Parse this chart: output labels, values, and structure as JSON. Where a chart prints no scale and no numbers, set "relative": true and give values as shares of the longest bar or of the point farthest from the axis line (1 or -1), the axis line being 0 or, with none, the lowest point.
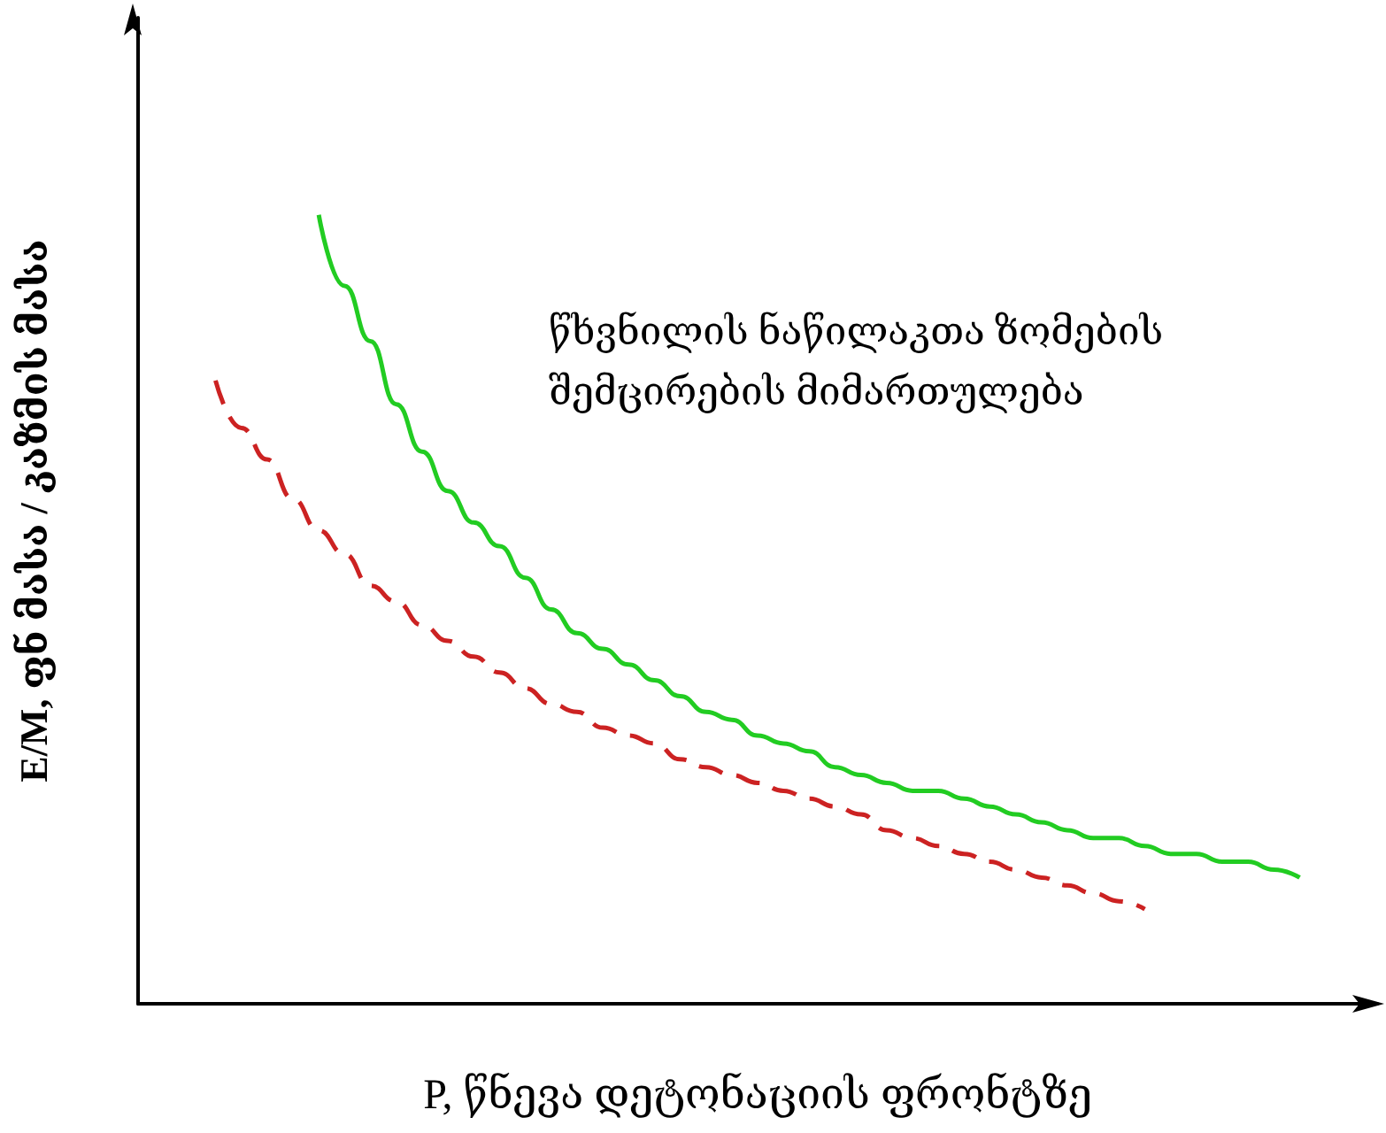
{
  "chart_data": {
    "type": "line",
    "relative": true,
    "xlabel": "P, წნევა დეტონაციის ფრონტზე",
    "ylabel": "E/M, ფნ მასა / კაზმის მასა",
    "annotations": [
      "წხვნილის ნაწილაკთა ზომების\nშემცირების მიმართულება"
    ],
    "categories": [
      null,
      null,
      null,
      null,
      null,
      null,
      null,
      null,
      null,
      null,
      null,
      null,
      null,
      null,
      null,
      null,
      null,
      null,
      null,
      null,
      null,
      null,
      null,
      null,
      null,
      null,
      null,
      null,
      null,
      null,
      null,
      null,
      null,
      null,
      null,
      null,
      null,
      null,
      null,
      null,
      null,
      null,
      null,
      null,
      null,
      null,
      null,
      null,
      null
    ],
    "series": [
      {
        "color": "#22cc22",
        "line_style": "solid",
        "values": [
          null,
          null,
          null,
          null,
          null,
          null,
          null,
          1.0,
          0.91,
          0.84,
          0.76,
          0.7,
          0.65,
          0.61,
          0.58,
          0.54,
          0.5,
          0.47,
          0.45,
          0.43,
          0.41,
          0.39,
          0.37,
          0.36,
          0.34,
          0.33,
          0.32,
          0.3,
          0.29,
          0.28,
          0.27,
          0.27,
          0.26,
          0.25,
          0.24,
          0.23,
          0.22,
          0.21,
          0.21,
          0.2,
          0.19,
          0.19,
          0.18,
          0.18,
          0.17,
          0.16,
          null,
          null,
          null
        ]
      },
      {
        "color": "#cc2222",
        "line_style": "dashed",
        "values": [
          null,
          null,
          null,
          0.79,
          0.73,
          0.69,
          0.64,
          0.6,
          0.57,
          0.53,
          0.51,
          0.48,
          0.46,
          0.44,
          0.42,
          0.4,
          0.38,
          0.37,
          0.35,
          0.34,
          0.33,
          0.31,
          0.3,
          0.29,
          0.28,
          0.27,
          0.26,
          0.25,
          0.24,
          0.22,
          0.21,
          0.2,
          0.19,
          0.18,
          0.17,
          0.16,
          0.15,
          0.14,
          0.13,
          0.12,
          null,
          null,
          null,
          null,
          null,
          null,
          null,
          null,
          null
        ]
      }
    ],
    "marker": "none",
    "grid": false
  }
}
